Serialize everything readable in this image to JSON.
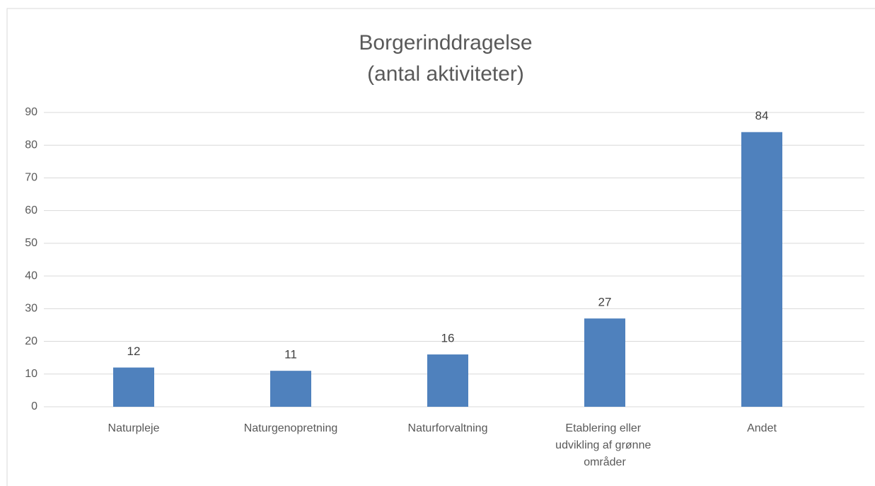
{
  "chart_data": {
    "type": "bar",
    "title": [
      "Borgerinddragelse",
      "(antal aktiviteter)"
    ],
    "categories": [
      "Naturpleje",
      "Naturgenopretning",
      "Naturforvaltning",
      "Etablering eller udvikling af grønne områder",
      "Andet"
    ],
    "values": [
      12,
      11,
      16,
      27,
      84
    ],
    "color": "#4f81bd",
    "ylim": [
      0,
      90
    ],
    "yticks": [
      0,
      10,
      20,
      30,
      40,
      50,
      60,
      70,
      80,
      90
    ],
    "grid": true
  }
}
